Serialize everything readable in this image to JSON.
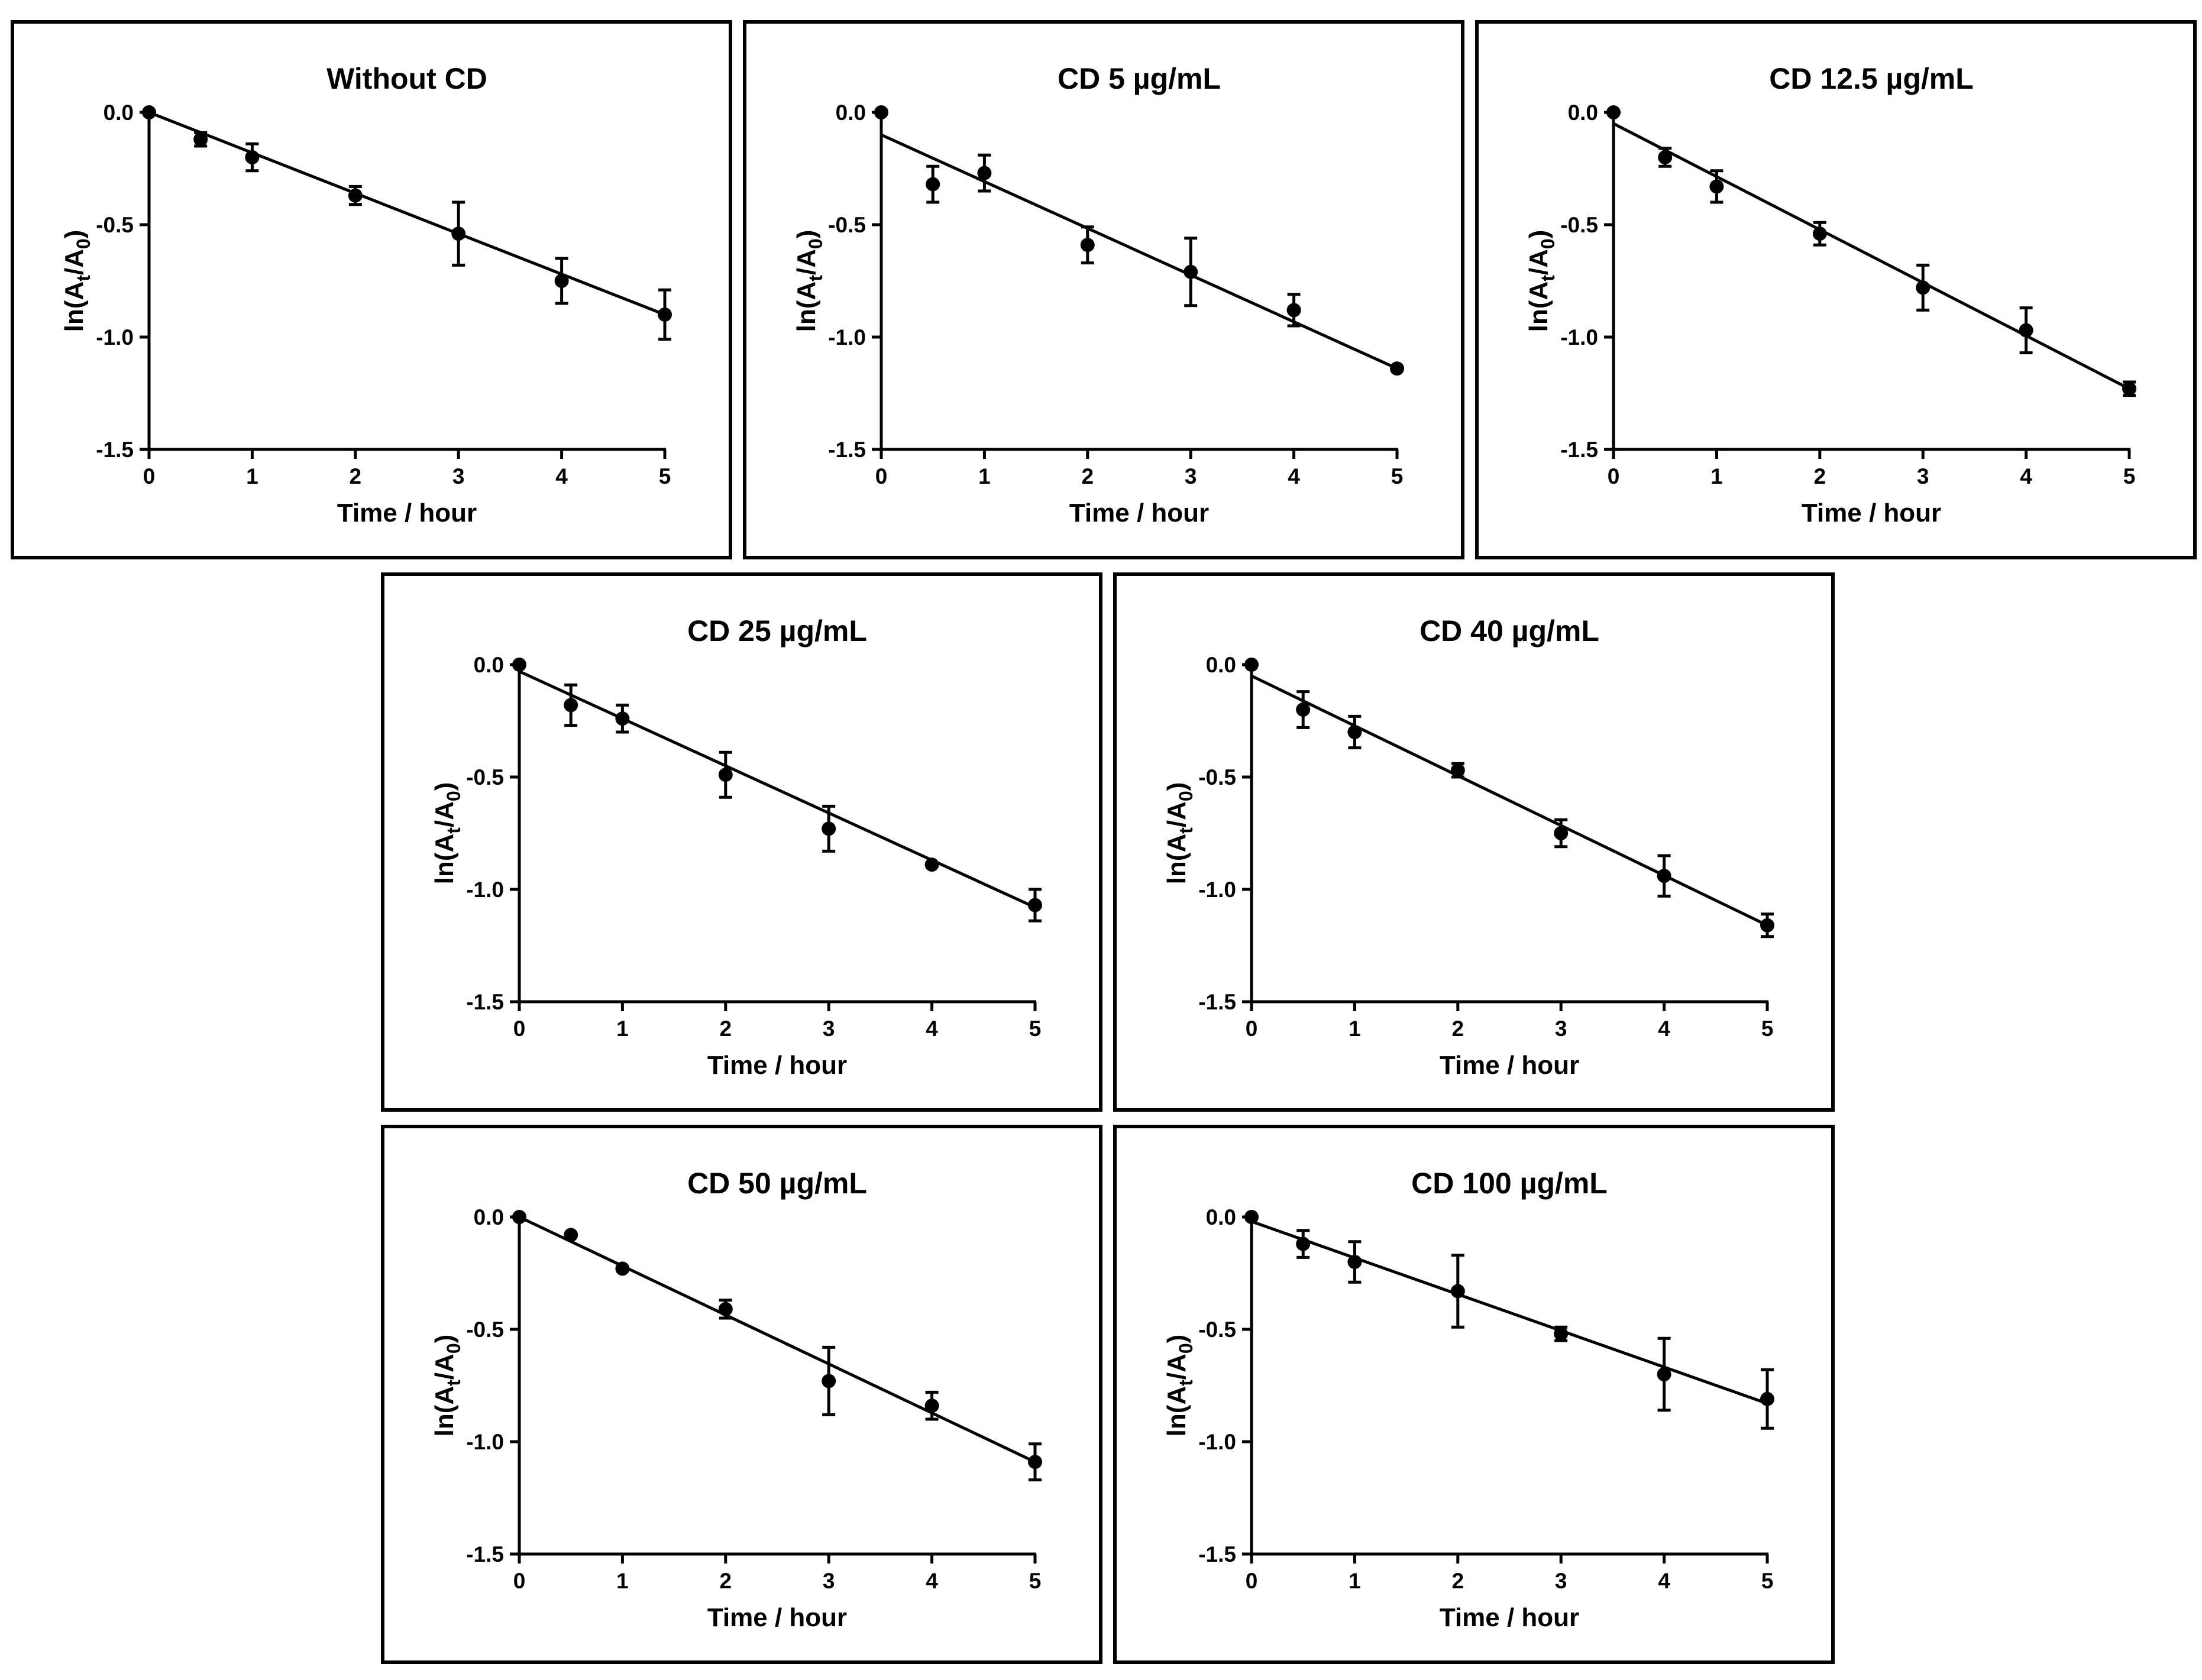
{
  "chart_data": [
    {
      "type": "scatter",
      "title": "Without CD",
      "xlabel": "Time / hour",
      "ylabel_main": "ln(A",
      "ylabel_sub1": "t",
      "ylabel_mid": "/A",
      "ylabel_sub2": "0",
      "ylabel_end": ")",
      "xlim": [
        0,
        5
      ],
      "ylim": [
        -1.5,
        0.0
      ],
      "xticks": [
        "0",
        "1",
        "2",
        "3",
        "4",
        "5"
      ],
      "yticks": [
        "0.0",
        "-0.5",
        "-1.0",
        "-1.5"
      ],
      "x": [
        0,
        0.5,
        1,
        2,
        3,
        4,
        5
      ],
      "y": [
        0.0,
        -0.12,
        -0.2,
        -0.37,
        -0.54,
        -0.75,
        -0.9
      ],
      "err": [
        0,
        0.03,
        0.06,
        0.04,
        0.14,
        0.1,
        0.11
      ],
      "fit": {
        "x": [
          0,
          5
        ],
        "y": [
          0.0,
          -0.9
        ]
      }
    },
    {
      "type": "scatter",
      "title": "CD 5 µg/mL",
      "xlabel": "Time / hour",
      "ylabel_main": "ln(A",
      "ylabel_sub1": "t",
      "ylabel_mid": "/A",
      "ylabel_sub2": "0",
      "ylabel_end": ")",
      "xlim": [
        0,
        5
      ],
      "ylim": [
        -1.5,
        0.0
      ],
      "xticks": [
        "0",
        "1",
        "2",
        "3",
        "4",
        "5"
      ],
      "yticks": [
        "0.0",
        "-0.5",
        "-1.0",
        "-1.5"
      ],
      "x": [
        0,
        0.5,
        1,
        2,
        3,
        4,
        5
      ],
      "y": [
        0.0,
        -0.32,
        -0.27,
        -0.59,
        -0.71,
        -0.88,
        -1.14
      ],
      "err": [
        0,
        0.08,
        0.08,
        0.08,
        0.15,
        0.07,
        0
      ],
      "fit": {
        "x": [
          0,
          5
        ],
        "y": [
          -0.1,
          -1.14
        ]
      }
    },
    {
      "type": "scatter",
      "title": "CD 12.5 µg/mL",
      "xlabel": "Time / hour",
      "ylabel_main": "ln(A",
      "ylabel_sub1": "t",
      "ylabel_mid": "/A",
      "ylabel_sub2": "0",
      "ylabel_end": ")",
      "xlim": [
        0,
        5
      ],
      "ylim": [
        -1.5,
        0.0
      ],
      "xticks": [
        "0",
        "1",
        "2",
        "3",
        "4",
        "5"
      ],
      "yticks": [
        "0.0",
        "-0.5",
        "-1.0",
        "-1.5"
      ],
      "x": [
        0,
        0.5,
        1,
        2,
        3,
        4,
        5
      ],
      "y": [
        0.0,
        -0.2,
        -0.33,
        -0.54,
        -0.78,
        -0.97,
        -1.23
      ],
      "err": [
        0,
        0.04,
        0.07,
        0.05,
        0.1,
        0.1,
        0.03
      ],
      "fit": {
        "x": [
          0,
          5
        ],
        "y": [
          -0.05,
          -1.23
        ]
      }
    },
    {
      "type": "scatter",
      "title": "CD 25 µg/mL",
      "xlabel": "Time / hour",
      "ylabel_main": "ln(A",
      "ylabel_sub1": "t",
      "ylabel_mid": "/A",
      "ylabel_sub2": "0",
      "ylabel_end": ")",
      "xlim": [
        0,
        5
      ],
      "ylim": [
        -1.5,
        0.0
      ],
      "xticks": [
        "0",
        "1",
        "2",
        "3",
        "4",
        "5"
      ],
      "yticks": [
        "0.0",
        "-0.5",
        "-1.0",
        "-1.5"
      ],
      "x": [
        0,
        0.5,
        1,
        2,
        3,
        4,
        5
      ],
      "y": [
        0.0,
        -0.18,
        -0.24,
        -0.49,
        -0.73,
        -0.89,
        -1.07
      ],
      "err": [
        0,
        0.09,
        0.06,
        0.1,
        0.1,
        0,
        0.07
      ],
      "fit": {
        "x": [
          0,
          5
        ],
        "y": [
          -0.03,
          -1.08
        ]
      }
    },
    {
      "type": "scatter",
      "title": "CD 40 µg/mL",
      "xlabel": "Time / hour",
      "ylabel_main": "ln(A",
      "ylabel_sub1": "t",
      "ylabel_mid": "/A",
      "ylabel_sub2": "0",
      "ylabel_end": ")",
      "xlim": [
        0,
        5
      ],
      "ylim": [
        -1.5,
        0.0
      ],
      "xticks": [
        "0",
        "1",
        "2",
        "3",
        "4",
        "5"
      ],
      "yticks": [
        "0.0",
        "-0.5",
        "-1.0",
        "-1.5"
      ],
      "x": [
        0,
        0.5,
        1,
        2,
        3,
        4,
        5
      ],
      "y": [
        0.0,
        -0.2,
        -0.3,
        -0.47,
        -0.75,
        -0.94,
        -1.16
      ],
      "err": [
        0,
        0.08,
        0.07,
        0.03,
        0.06,
        0.09,
        0.05
      ],
      "fit": {
        "x": [
          0,
          5
        ],
        "y": [
          -0.05,
          -1.16
        ]
      }
    },
    {
      "type": "scatter",
      "title": "CD 50 µg/mL",
      "xlabel": "Time / hour",
      "ylabel_main": "ln(A",
      "ylabel_sub1": "t",
      "ylabel_mid": "/A",
      "ylabel_sub2": "0",
      "ylabel_end": ")",
      "xlim": [
        0,
        5
      ],
      "ylim": [
        -1.5,
        0.0
      ],
      "xticks": [
        "0",
        "1",
        "2",
        "3",
        "4",
        "5"
      ],
      "yticks": [
        "0.0",
        "-0.5",
        "-1.0",
        "-1.5"
      ],
      "x": [
        0,
        0.5,
        1,
        2,
        3,
        4,
        5
      ],
      "y": [
        0.0,
        -0.08,
        -0.23,
        -0.41,
        -0.73,
        -0.84,
        -1.09
      ],
      "err": [
        0,
        0,
        0,
        0.04,
        0.15,
        0.06,
        0.08
      ],
      "fit": {
        "x": [
          0,
          5
        ],
        "y": [
          0.0,
          -1.09
        ]
      }
    },
    {
      "type": "scatter",
      "title": "CD 100 µg/mL",
      "xlabel": "Time / hour",
      "ylabel_main": "ln(A",
      "ylabel_sub1": "t",
      "ylabel_mid": "/A",
      "ylabel_sub2": "0",
      "ylabel_end": ")",
      "xlim": [
        0,
        5
      ],
      "ylim": [
        -1.5,
        0.0
      ],
      "xticks": [
        "0",
        "1",
        "2",
        "3",
        "4",
        "5"
      ],
      "yticks": [
        "0.0",
        "-0.5",
        "-1.0",
        "-1.5"
      ],
      "x": [
        0,
        0.5,
        1,
        2,
        3,
        4,
        5
      ],
      "y": [
        0.0,
        -0.12,
        -0.2,
        -0.33,
        -0.52,
        -0.7,
        -0.81
      ],
      "err": [
        0,
        0.06,
        0.09,
        0.16,
        0.03,
        0.16,
        0.13
      ],
      "fit": {
        "x": [
          0,
          5
        ],
        "y": [
          -0.02,
          -0.83
        ]
      }
    }
  ]
}
